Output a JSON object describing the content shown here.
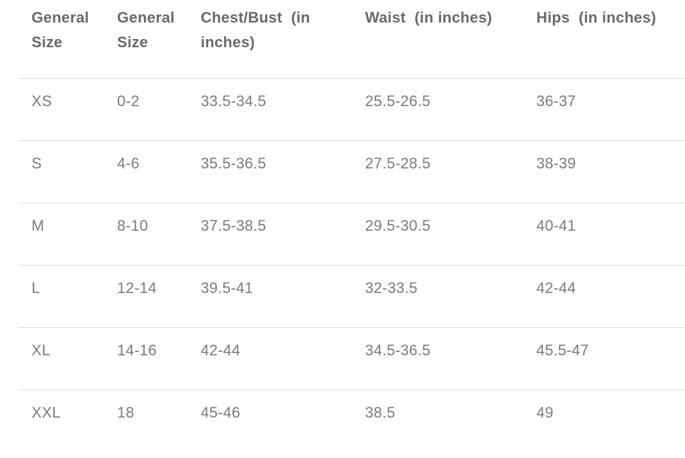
{
  "table": {
    "columns": [
      {
        "label": "General Size"
      },
      {
        "label": "General Size"
      },
      {
        "label": "Chest/Bust  (in inches)"
      },
      {
        "label": "Waist  (in inches)"
      },
      {
        "label": "Hips  (in inches)"
      }
    ],
    "rows": [
      [
        "XS",
        "0-2",
        "33.5-34.5",
        "25.5-26.5",
        "36-37"
      ],
      [
        "S",
        "4-6",
        "35.5-36.5",
        "27.5-28.5",
        "38-39"
      ],
      [
        "M",
        "8-10",
        "37.5-38.5",
        "29.5-30.5",
        "40-41"
      ],
      [
        "L",
        "12-14",
        "39.5-41",
        "32-33.5",
        "42-44"
      ],
      [
        "XL",
        "14-16",
        "42-44",
        "34.5-36.5",
        "45.5-47"
      ],
      [
        "XXL",
        "18",
        "45-46",
        "38.5",
        "49"
      ]
    ]
  },
  "colors": {
    "background": "#ffffff",
    "header_text": "#696969",
    "cell_text": "#7b7b7b",
    "divider": "#dcdcdc"
  }
}
